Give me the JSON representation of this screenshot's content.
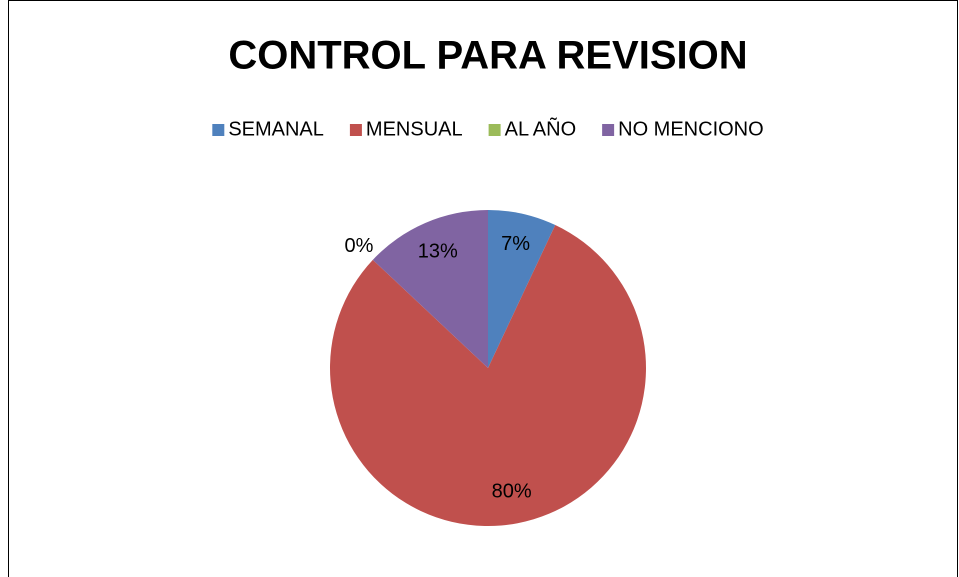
{
  "chart_data": {
    "type": "pie",
    "title": "CONTROL PARA REVISION",
    "categories": [
      "SEMANAL",
      "MENSUAL",
      "AL AÑO",
      "NO MENCIONO"
    ],
    "values": [
      7,
      80,
      0,
      13
    ],
    "value_labels": [
      "7%",
      "80%",
      "0%",
      "13%"
    ],
    "colors": [
      "#4f81bd",
      "#c0504d",
      "#9bbb59",
      "#8064a2"
    ],
    "legend": "top"
  }
}
